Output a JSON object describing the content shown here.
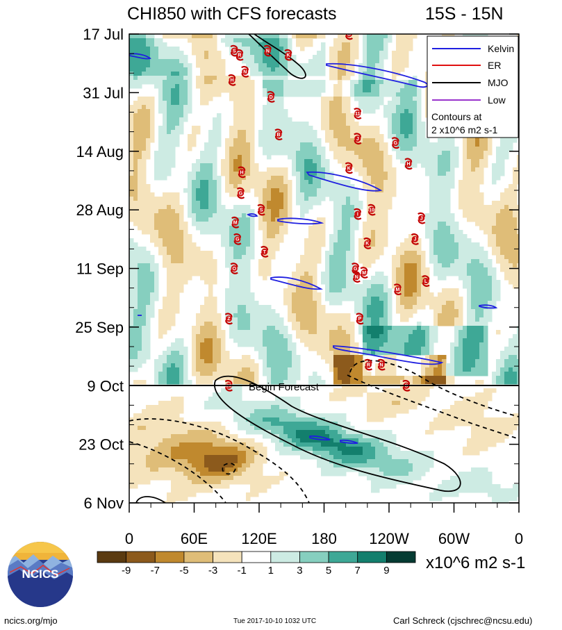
{
  "chart_data": {
    "type": "heatmap",
    "title_left": "CHI850 with CFS forecasts",
    "title_right": "15S - 15N",
    "x_ticks": [
      "0",
      "60E",
      "120E",
      "180",
      "120W",
      "60W",
      "0"
    ],
    "x_range_deg_east": [
      0,
      360
    ],
    "y_ticks": [
      "17 Jul",
      "31 Jul",
      "14 Aug",
      "28 Aug",
      "11 Sep",
      "25 Sep",
      "9 Oct",
      "23 Oct",
      "6 Nov"
    ],
    "y_range": [
      "17 Jul",
      "6 Nov"
    ],
    "forecast_start": "9 Oct",
    "forecast_label": "Begin Forecast",
    "legend": [
      {
        "label": "Kelvin",
        "color": "#1f1fe0"
      },
      {
        "label": "ER",
        "color": "#e01010"
      },
      {
        "label": "MJO",
        "color": "#000000"
      },
      {
        "label": "Low",
        "color": "#9933cc"
      }
    ],
    "legend_note_line1": "Contours at",
    "legend_note_line2": "2 x10^6 m2 s-1",
    "colorbar": {
      "levels": [
        "-9",
        "-7",
        "-5",
        "-3",
        "-1",
        "1",
        "3",
        "5",
        "7",
        "9"
      ],
      "colors": [
        "#5a3a10",
        "#8c5a1c",
        "#c0892e",
        "#dfbd78",
        "#f5e3bc",
        "#ffffff",
        "#cdebe3",
        "#86cfbf",
        "#3ea896",
        "#137f6d",
        "#053b32"
      ],
      "units": "x10^6 m2 s-1"
    },
    "storms": [
      {
        "name": "G",
        "lon": 203,
        "date": "2017-07-17"
      },
      {
        "name": "S",
        "lon": 97,
        "date": "2017-07-21"
      },
      {
        "name": "R",
        "lon": 102,
        "date": "2017-07-22"
      },
      {
        "name": "N",
        "lon": 128,
        "date": "2017-07-21"
      },
      {
        "name": "K",
        "lon": 147,
        "date": "2017-07-22"
      },
      {
        "name": "N",
        "lon": 107,
        "date": "2017-07-26"
      },
      {
        "name": "H",
        "lon": 95,
        "date": "2017-07-28"
      },
      {
        "name": "D",
        "lon": 131,
        "date": "2017-08-01"
      },
      {
        "name": "11",
        "lon": 211,
        "date": "2017-08-05"
      },
      {
        "name": "B",
        "lon": 138,
        "date": "2017-08-10"
      },
      {
        "name": "J",
        "lon": 211,
        "date": "2017-08-11"
      },
      {
        "name": "G",
        "lon": 246,
        "date": "2017-08-12"
      },
      {
        "name": "K",
        "lon": 203,
        "date": "2017-08-18"
      },
      {
        "name": "H",
        "lon": 258,
        "date": "2017-08-17"
      },
      {
        "name": "H",
        "lon": 104,
        "date": "2017-08-19"
      },
      {
        "name": "G",
        "lon": 103,
        "date": "2017-08-24"
      },
      {
        "name": "S",
        "lon": 122,
        "date": "2017-08-28"
      },
      {
        "name": "10",
        "lon": 224,
        "date": "2017-08-28"
      },
      {
        "name": "I",
        "lon": 211,
        "date": "2017-08-29"
      },
      {
        "name": "J",
        "lon": 270,
        "date": "2017-08-30"
      },
      {
        "name": "M",
        "lon": 98,
        "date": "2017-08-31"
      },
      {
        "name": "G",
        "lon": 100,
        "date": "2017-09-04"
      },
      {
        "name": "K",
        "lon": 220,
        "date": "2017-09-05"
      },
      {
        "name": "J",
        "lon": 264,
        "date": "2017-09-04"
      },
      {
        "name": "T",
        "lon": 125,
        "date": "2017-09-07"
      },
      {
        "name": "O",
        "lon": 97,
        "date": "2017-09-11"
      },
      {
        "name": "G",
        "lon": 209,
        "date": "2017-09-11"
      },
      {
        "name": "N",
        "lon": 210,
        "date": "2017-09-13"
      },
      {
        "name": "M",
        "lon": 217,
        "date": "2017-09-12"
      },
      {
        "name": "M",
        "lon": 248,
        "date": "2017-09-16"
      },
      {
        "name": "L",
        "lon": 274,
        "date": "2017-09-14"
      },
      {
        "name": "Z",
        "lon": 92,
        "date": "2017-09-23"
      },
      {
        "name": "P",
        "lon": 213,
        "date": "2017-09-23"
      },
      {
        "name": "R",
        "lon": 221,
        "date": "2017-10-04"
      },
      {
        "name": "N",
        "lon": 233,
        "date": "2017-10-04"
      },
      {
        "name": "23",
        "lon": 92,
        "date": "2017-10-09"
      },
      {
        "name": "S",
        "lon": 256,
        "date": "2017-10-09"
      }
    ]
  },
  "branding": {
    "logo_text": "NCICS",
    "url": "ncics.org/mjo",
    "timestamp": "Tue 2017-10-10 1032 UTC",
    "author": "Carl Schreck (cjschrec@ncsu.edu)"
  }
}
